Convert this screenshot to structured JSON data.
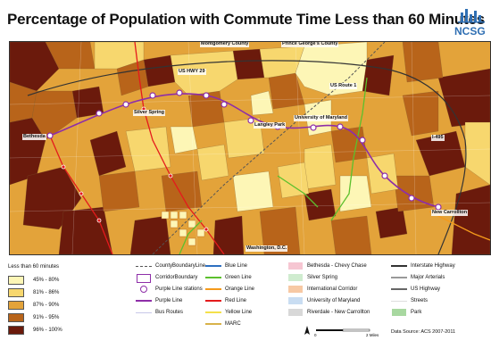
{
  "title": "Percentage of Population with Commute Time Less than 60 Minutes",
  "logo_text": "NCSG",
  "map": {
    "labels": {
      "montgomery": "Montgomery County",
      "princegeorge": "Prince George's County",
      "ushwy29": "US HWY 29",
      "usroute1": "US Route 1",
      "silverspring": "Silver Spring",
      "langleypark": "Langley Park",
      "universitymd": "University of Maryland",
      "bethesda": "Bethesda",
      "i495": "I-495",
      "newcarrollton": "New Carrollton",
      "washingtondc": "Washington, D.C."
    },
    "colors": {
      "class1": "#fdf6b6",
      "class2": "#f7d76e",
      "class3": "#e3a33a",
      "class4": "#b8641a",
      "class5": "#6b1a0c"
    }
  },
  "legend": {
    "title": "Less than 60 minutes",
    "classes": [
      {
        "label": "45% - 80%",
        "color": "#fdf6b6"
      },
      {
        "label": "81% - 86%",
        "color": "#f7d76e"
      },
      {
        "label": "87% - 90%",
        "color": "#e3a33a"
      },
      {
        "label": "91% - 95%",
        "color": "#b8641a"
      },
      {
        "label": "96% - 100%",
        "color": "#6b1a0c"
      }
    ],
    "col1": {
      "county_boundary": "CountyBoundaryLine",
      "corridor_boundary": "CorridorBoundary",
      "purple_stations": "Purple Line stations",
      "purple_line": "Purple Line",
      "bus_routes": "Bus Routes"
    },
    "col2": {
      "blue_line": "Blue Line",
      "green_line": "Green Line",
      "orange_line": "Orange Line",
      "red_line": "Red Line",
      "yellow_line": "Yellow Line",
      "marc": "MARC"
    },
    "col3": {
      "bethesda_chevy_chase": "Bethesda - Chevy Chase",
      "silver_spring": "Silver Spring",
      "international_corridor": "International Corridor",
      "university_md": "University of Maryland",
      "riverdale": "Riverdale - New Carrollton"
    },
    "col4": {
      "interstate": "Interstate Highway",
      "major_arterials": "Major Arterials",
      "us_highway": "US Highway",
      "streets": "Streets",
      "park": "Park"
    },
    "line_colors": {
      "blue": "#2e6fc0",
      "green": "#5cc02d",
      "orange": "#f59a1b",
      "red": "#e41a1c",
      "yellow": "#f4e14a",
      "marc": "#d8b24a",
      "purple": "#8e2ea8"
    },
    "corridor_colors": {
      "bethesda": "#f6c6d2",
      "silver_spring": "#cfeccf",
      "international": "#f7c9a4",
      "umd": "#c9ddf2",
      "riverdale": "#d8d8d8",
      "park": "#a8d8a0"
    }
  },
  "scale": {
    "label_left": "0",
    "label_right": "2 Miles"
  },
  "data_source": "Data Source: ACS 2007-2011"
}
